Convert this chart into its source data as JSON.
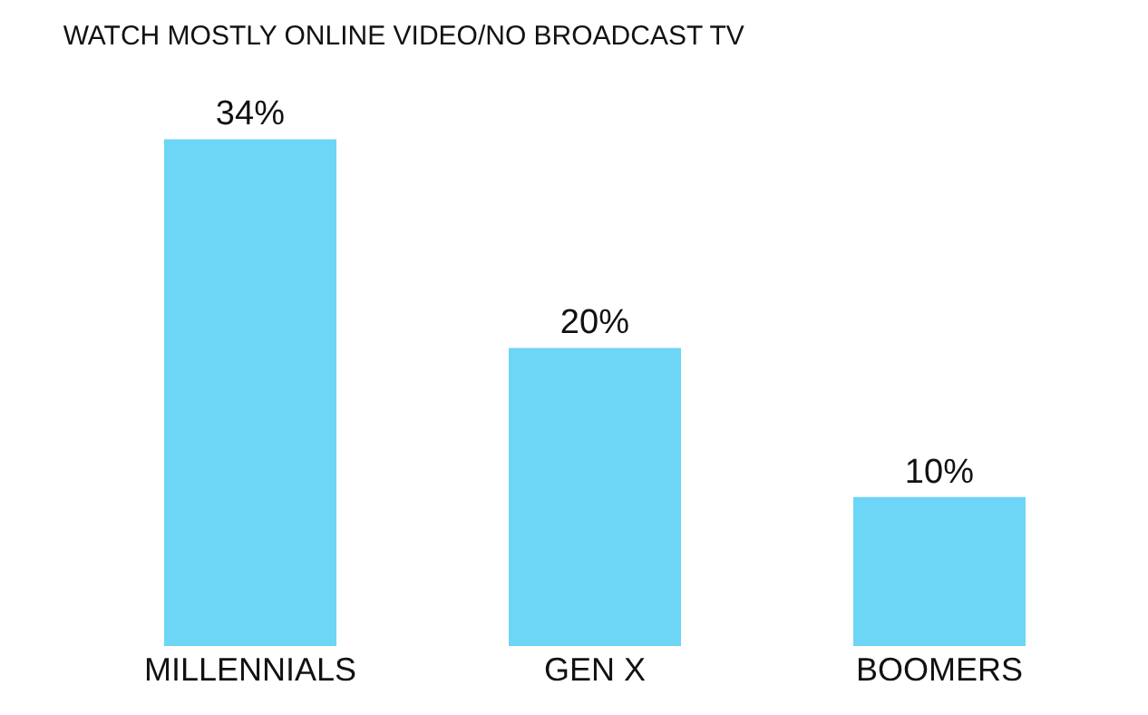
{
  "chart_data": {
    "type": "bar",
    "title": "WATCH MOSTLY ONLINE VIDEO/NO BROADCAST TV",
    "categories": [
      "MILLENNIALS",
      "GEN X",
      "BOOMERS"
    ],
    "values": [
      34,
      20,
      10
    ],
    "value_labels": [
      "34%",
      "20%",
      "10%"
    ],
    "color": "#6dd5f5"
  }
}
